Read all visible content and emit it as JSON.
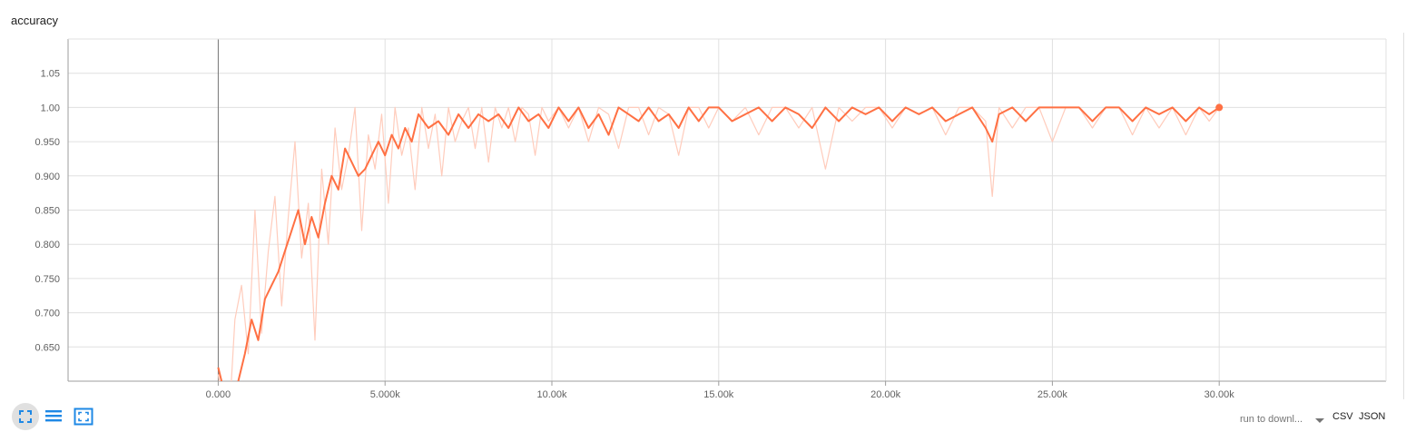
{
  "card": {
    "title": "accuracy"
  },
  "colors": {
    "series": "#ff7043",
    "series_raw": "#ffccbc",
    "grid": "#e0e0e0",
    "axis": "#9e9e9e"
  },
  "chart_data": {
    "type": "line",
    "title": "accuracy",
    "xlabel": "",
    "ylabel": "",
    "xlim": [
      -4500,
      35000
    ],
    "ylim": [
      0.6,
      1.1
    ],
    "x_ticks": [
      0,
      5000,
      10000,
      15000,
      20000,
      25000,
      30000
    ],
    "x_tick_labels": [
      "0.000",
      "5.000k",
      "10.00k",
      "15.00k",
      "20.00k",
      "25.00k",
      "30.00k"
    ],
    "y_ticks": [
      0.65,
      0.7,
      0.75,
      0.8,
      0.85,
      0.9,
      0.95,
      1.0,
      1.05
    ],
    "y_tick_labels": [
      "0.650",
      "0.700",
      "0.750",
      "0.800",
      "0.850",
      "0.900",
      "0.950",
      "1.00",
      "1.05"
    ],
    "grid": true,
    "series": [
      {
        "role": "raw",
        "x": [
          0,
          300,
          500,
          700,
          900,
          1100,
          1300,
          1500,
          1700,
          1900,
          2100,
          2300,
          2500,
          2700,
          2900,
          3100,
          3300,
          3500,
          3700,
          3900,
          4100,
          4300,
          4500,
          4700,
          4900,
          5100,
          5300,
          5500,
          5700,
          5900,
          6100,
          6300,
          6500,
          6700,
          6900,
          7100,
          7300,
          7500,
          7700,
          7900,
          8100,
          8300,
          8500,
          8700,
          8900,
          9100,
          9300,
          9500,
          9700,
          9900,
          10200,
          10500,
          10800,
          11100,
          11400,
          11700,
          12000,
          12300,
          12600,
          12900,
          13200,
          13500,
          13800,
          14100,
          14400,
          14700,
          15000,
          15400,
          15800,
          16200,
          16600,
          17000,
          17400,
          17800,
          18200,
          18600,
          19000,
          19400,
          19800,
          20200,
          20600,
          21000,
          21400,
          21800,
          22200,
          22600,
          23000,
          23200,
          23400,
          23800,
          24200,
          24600,
          25000,
          25400,
          25800,
          26200,
          26600,
          27000,
          27400,
          27800,
          28200,
          28600,
          29000,
          29400,
          29700,
          30000
        ],
        "y": [
          0.61,
          0.52,
          0.69,
          0.74,
          0.64,
          0.85,
          0.67,
          0.79,
          0.87,
          0.71,
          0.84,
          0.95,
          0.78,
          0.86,
          0.66,
          0.91,
          0.8,
          0.97,
          0.88,
          0.93,
          1.0,
          0.82,
          0.96,
          0.91,
          0.99,
          0.86,
          1.0,
          0.93,
          0.97,
          0.88,
          1.0,
          0.94,
          0.99,
          0.9,
          1.0,
          0.95,
          0.98,
          1.0,
          0.94,
          1.0,
          0.92,
          1.0,
          0.97,
          1.0,
          0.95,
          1.0,
          0.99,
          0.93,
          1.0,
          0.98,
          1.0,
          0.97,
          1.0,
          0.95,
          1.0,
          0.99,
          0.94,
          1.0,
          1.0,
          0.96,
          1.0,
          0.99,
          0.93,
          1.0,
          1.0,
          0.97,
          1.0,
          0.98,
          1.0,
          0.96,
          1.0,
          1.0,
          0.97,
          1.0,
          0.91,
          1.0,
          0.98,
          1.0,
          1.0,
          0.97,
          1.0,
          0.99,
          1.0,
          0.96,
          1.0,
          1.0,
          0.98,
          0.87,
          1.0,
          0.97,
          1.0,
          1.0,
          0.95,
          1.0,
          1.0,
          0.97,
          1.0,
          1.0,
          0.96,
          1.0,
          0.97,
          1.0,
          0.96,
          1.0,
          0.98,
          1.0
        ]
      },
      {
        "role": "smoothed",
        "x": [
          0,
          200,
          400,
          600,
          800,
          1000,
          1200,
          1400,
          1600,
          1800,
          2000,
          2200,
          2400,
          2600,
          2800,
          3000,
          3200,
          3400,
          3600,
          3800,
          4000,
          4200,
          4400,
          4600,
          4800,
          5000,
          5200,
          5400,
          5600,
          5800,
          6000,
          6300,
          6600,
          6900,
          7200,
          7500,
          7800,
          8100,
          8400,
          8700,
          9000,
          9300,
          9600,
          9900,
          10200,
          10500,
          10800,
          11100,
          11400,
          11700,
          12000,
          12300,
          12600,
          12900,
          13200,
          13500,
          13800,
          14100,
          14400,
          14700,
          15000,
          15400,
          15800,
          16200,
          16600,
          17000,
          17400,
          17800,
          18200,
          18600,
          19000,
          19400,
          19800,
          20200,
          20600,
          21000,
          21400,
          21800,
          22200,
          22600,
          23000,
          23200,
          23400,
          23800,
          24200,
          24600,
          25000,
          25400,
          25800,
          26200,
          26600,
          27000,
          27400,
          27800,
          28200,
          28600,
          29000,
          29400,
          29700,
          30000
        ],
        "y": [
          0.62,
          0.58,
          0.57,
          0.6,
          0.64,
          0.69,
          0.66,
          0.72,
          0.74,
          0.76,
          0.79,
          0.82,
          0.85,
          0.8,
          0.84,
          0.81,
          0.86,
          0.9,
          0.88,
          0.94,
          0.92,
          0.9,
          0.91,
          0.93,
          0.95,
          0.93,
          0.96,
          0.94,
          0.97,
          0.95,
          0.99,
          0.97,
          0.98,
          0.96,
          0.99,
          0.97,
          0.99,
          0.98,
          0.99,
          0.97,
          1.0,
          0.98,
          0.99,
          0.97,
          1.0,
          0.98,
          1.0,
          0.97,
          0.99,
          0.96,
          1.0,
          0.99,
          0.98,
          1.0,
          0.98,
          0.99,
          0.97,
          1.0,
          0.98,
          1.0,
          1.0,
          0.98,
          0.99,
          1.0,
          0.98,
          1.0,
          0.99,
          0.97,
          1.0,
          0.98,
          1.0,
          0.99,
          1.0,
          0.98,
          1.0,
          0.99,
          1.0,
          0.98,
          0.99,
          1.0,
          0.97,
          0.95,
          0.99,
          1.0,
          0.98,
          1.0,
          1.0,
          1.0,
          1.0,
          0.98,
          1.0,
          1.0,
          0.98,
          1.0,
          0.99,
          1.0,
          0.98,
          1.0,
          0.99,
          1.0
        ]
      }
    ]
  },
  "toolbar": {
    "icons": [
      "fullscreen-icon",
      "list-icon",
      "fit-domain-icon"
    ],
    "download_select": "run to downl...",
    "csv_label": "CSV",
    "json_label": "JSON"
  }
}
